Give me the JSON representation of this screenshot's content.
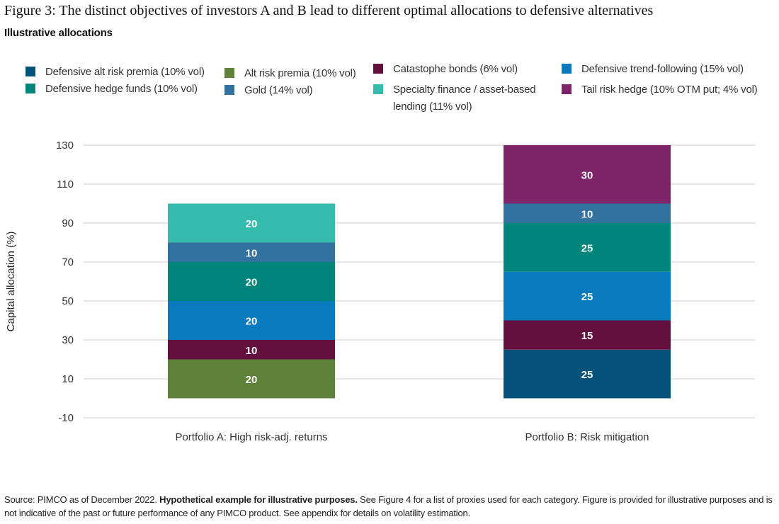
{
  "figure": {
    "title": "Figure 3: The distinct objectives of investors A and B lead to different optimal allocations to defensive alternatives",
    "subtitle": "Illustrative allocations"
  },
  "source": {
    "lead": "Source: PIMCO as of December 2022. ",
    "bold": "Hypothetical example for illustrative purposes.",
    "rest": " See Figure 4 for a list of proxies used for each category. Figure is provided for illustrative purposes and is not indicative of the past or future performance of any PIMCO product. See appendix for details on volatility estimation."
  },
  "colors": {
    "defensive_arp": "#02527a",
    "def_hedge_funds": "#00857a",
    "alt_risk_premia": "#5f823b",
    "gold": "#33729f",
    "cat_bonds": "#63103f",
    "specialty_finance": "#34bbae",
    "trend_following": "#0a7abf",
    "tail_risk": "#7f2469",
    "bar_label": "#ffffff",
    "grid": "#cccccc",
    "axis_text": "#333333"
  },
  "legend": [
    {
      "key": "defensive_arp",
      "label": "Defensive alt risk premia (10% vol)"
    },
    {
      "key": "def_hedge_funds",
      "label": "Defensive hedge funds (10% vol)"
    },
    {
      "key": "alt_risk_premia",
      "label": "Alt risk premia (10% vol)"
    },
    {
      "key": "gold",
      "label": "Gold (14% vol)"
    },
    {
      "key": "cat_bonds",
      "label": "Catastophe bonds (6% vol)"
    },
    {
      "key": "specialty_finance",
      "label": "Specialty finance / asset-based lending (11% vol)"
    },
    {
      "key": "trend_following",
      "label": "Defensive trend-following (15% vol)"
    },
    {
      "key": "tail_risk",
      "label": "Tail risk hedge (10% OTM put; 4% vol)"
    }
  ],
  "chart_data": {
    "type": "bar",
    "stacked": true,
    "title": "",
    "xlabel": "",
    "ylabel": "Capital allocation (%)",
    "ylim": [
      -10,
      130
    ],
    "yticks": [
      -10,
      10,
      30,
      50,
      70,
      90,
      110,
      130
    ],
    "grid": true,
    "legend_position": "top",
    "categories": [
      "Portfolio A: High risk-adj. returns",
      "Portfolio B: Risk mitigation"
    ],
    "series": [
      {
        "name": "Defensive alt risk premia (10% vol)",
        "key": "defensive_arp",
        "values": [
          0,
          25
        ]
      },
      {
        "name": "Alt risk premia (10% vol)",
        "key": "alt_risk_premia",
        "values": [
          20,
          0
        ]
      },
      {
        "name": "Catastophe bonds (6% vol)",
        "key": "cat_bonds",
        "values": [
          10,
          15
        ]
      },
      {
        "name": "Defensive trend-following (15% vol)",
        "key": "trend_following",
        "values": [
          20,
          25
        ]
      },
      {
        "name": "Defensive hedge funds (10% vol)",
        "key": "def_hedge_funds",
        "values": [
          20,
          25
        ]
      },
      {
        "name": "Gold (14% vol)",
        "key": "gold",
        "values": [
          10,
          10
        ]
      },
      {
        "name": "Specialty finance / asset-based lending (11% vol)",
        "key": "specialty_finance",
        "values": [
          20,
          0
        ]
      },
      {
        "name": "Tail risk hedge (10% OTM put; 4% vol)",
        "key": "tail_risk",
        "values": [
          0,
          30
        ]
      }
    ]
  }
}
